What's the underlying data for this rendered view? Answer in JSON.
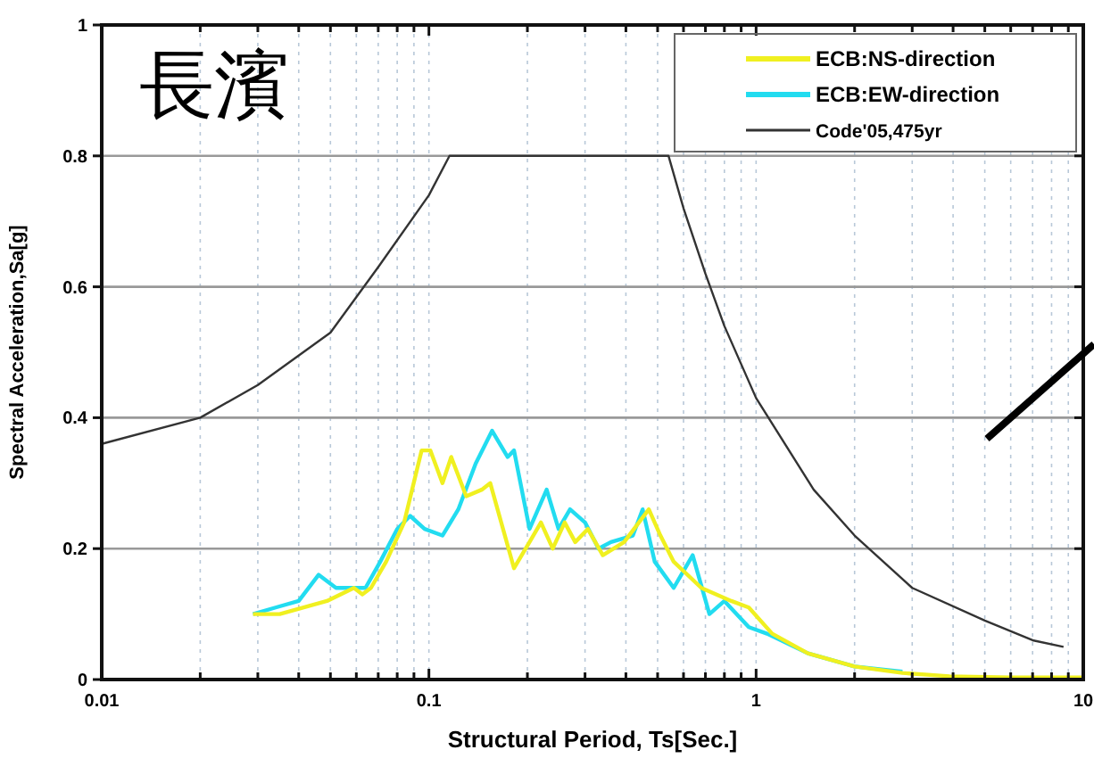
{
  "chart_data": {
    "type": "line",
    "xlabel": "Structural Period, Ts[Sec.]",
    "ylabel": "Spectral Acceleration,Sa[g]",
    "log": "x",
    "grid": true,
    "legend": "top right",
    "line_style": "solid",
    "marker": "none",
    "xlim": [
      0.01,
      10
    ],
    "ylim": [
      0,
      1
    ],
    "xticks": [
      {
        "value": 0.01,
        "label": "0.01"
      },
      {
        "value": 0.02,
        "label": null
      },
      {
        "value": 0.03,
        "label": null
      },
      {
        "value": 0.04,
        "label": null
      },
      {
        "value": 0.05,
        "label": null
      },
      {
        "value": 0.06,
        "label": null
      },
      {
        "value": 0.07,
        "label": null
      },
      {
        "value": 0.08,
        "label": null
      },
      {
        "value": 0.09,
        "label": null
      },
      {
        "value": 0.1,
        "label": "0.1"
      },
      {
        "value": 0.2,
        "label": null
      },
      {
        "value": 0.3,
        "label": null
      },
      {
        "value": 0.4,
        "label": null
      },
      {
        "value": 0.5,
        "label": null
      },
      {
        "value": 0.6,
        "label": null
      },
      {
        "value": 0.7,
        "label": null
      },
      {
        "value": 0.8,
        "label": null
      },
      {
        "value": 0.9,
        "label": null
      },
      {
        "value": 1,
        "label": "1"
      },
      {
        "value": 2,
        "label": null
      },
      {
        "value": 3,
        "label": null
      },
      {
        "value": 4,
        "label": null
      },
      {
        "value": 5,
        "label": null
      },
      {
        "value": 6,
        "label": null
      },
      {
        "value": 7,
        "label": null
      },
      {
        "value": 8,
        "label": null
      },
      {
        "value": 9,
        "label": null
      },
      {
        "value": 10,
        "label": "10"
      }
    ],
    "yticks": [
      0,
      0.2,
      0.4,
      0.6,
      0.8,
      1
    ],
    "annotations": [
      "長濱"
    ],
    "series": [
      {
        "name": "ECB:NS-direction",
        "color": "#f0f020",
        "x": [
          0.029,
          0.035,
          0.0488,
          0.059,
          0.0626,
          0.0665,
          0.074,
          0.084,
          0.095,
          0.101,
          0.11,
          0.117,
          0.13,
          0.145,
          0.154,
          0.182,
          0.203,
          0.22,
          0.239,
          0.26,
          0.28,
          0.306,
          0.34,
          0.395,
          0.47,
          0.51,
          0.56,
          0.68,
          0.84,
          0.95,
          1.12,
          1.44,
          2,
          2.8,
          3.9,
          5.95,
          10
        ],
        "values": [
          0.1,
          0.1,
          0.12,
          0.14,
          0.13,
          0.14,
          0.18,
          0.24,
          0.35,
          0.35,
          0.3,
          0.34,
          0.28,
          0.29,
          0.3,
          0.17,
          0.21,
          0.24,
          0.2,
          0.24,
          0.21,
          0.23,
          0.19,
          0.21,
          0.26,
          0.22,
          0.18,
          0.14,
          0.12,
          0.11,
          0.07,
          0.04,
          0.02,
          0.01,
          0.005,
          0.003,
          0.003
        ]
      },
      {
        "name": "ECB:EW-direction",
        "color": "#22dcf0",
        "x": [
          0.029,
          0.034,
          0.04,
          0.046,
          0.052,
          0.058,
          0.064,
          0.071,
          0.08,
          0.0876,
          0.097,
          0.11,
          0.123,
          0.139,
          0.156,
          0.174,
          0.182,
          0.203,
          0.229,
          0.249,
          0.27,
          0.3,
          0.33,
          0.36,
          0.42,
          0.45,
          0.49,
          0.56,
          0.64,
          0.72,
          0.8,
          0.95,
          1.08,
          1.44,
          2,
          2.8
        ],
        "values": [
          0.1,
          0.11,
          0.12,
          0.16,
          0.14,
          0.14,
          0.14,
          0.18,
          0.23,
          0.25,
          0.23,
          0.22,
          0.26,
          0.33,
          0.38,
          0.34,
          0.35,
          0.23,
          0.29,
          0.23,
          0.26,
          0.24,
          0.2,
          0.21,
          0.22,
          0.26,
          0.18,
          0.14,
          0.19,
          0.1,
          0.12,
          0.08,
          0.07,
          0.04,
          0.02,
          0.012
        ]
      },
      {
        "name": "Code'05,475yr",
        "color": "#333333",
        "x": [
          0.01,
          0.02,
          0.03,
          0.05,
          0.07,
          0.1,
          0.1156,
          0.54,
          0.6,
          0.7,
          0.8,
          1,
          1.5,
          2,
          3,
          5,
          7,
          8.7
        ],
        "values": [
          0.36,
          0.4,
          0.45,
          0.53,
          0.63,
          0.74,
          0.8,
          0.8,
          0.72,
          0.62,
          0.54,
          0.43,
          0.29,
          0.22,
          0.14,
          0.09,
          0.06,
          0.05
        ]
      }
    ]
  }
}
